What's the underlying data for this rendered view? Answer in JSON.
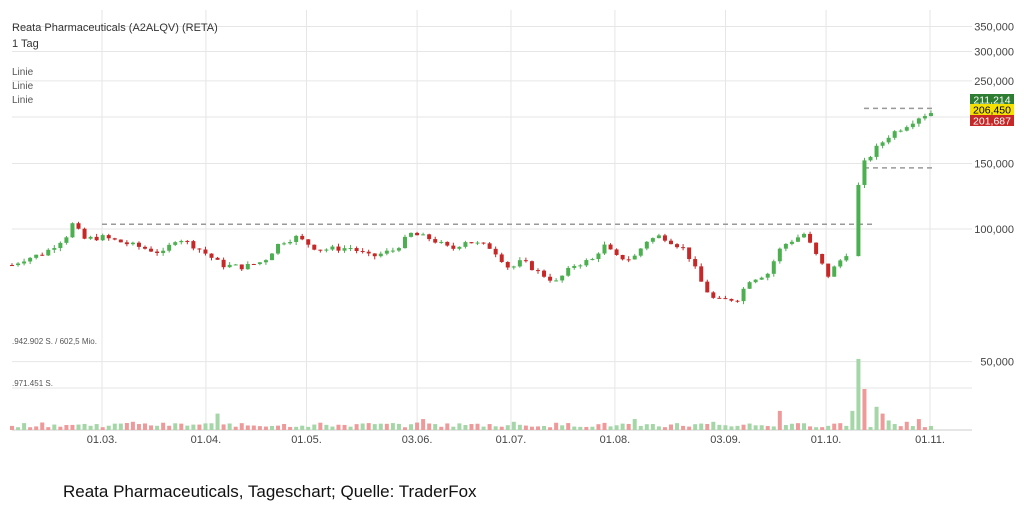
{
  "chart_data": {
    "type": "candlestick",
    "title": "Reata Pharmaceuticals (A2ALQV) (RETA)",
    "timeframe": "1 Tag",
    "indicator_labels": [
      "Linie",
      "Linie",
      "Linie"
    ],
    "x_ticks": [
      "01.03.",
      "01.04.",
      "01.05.",
      "03.06.",
      "01.07.",
      "01.08.",
      "03.09.",
      "01.10.",
      "01.11."
    ],
    "y_ticks": [
      "350,000",
      "300,000",
      "250,000",
      "150,000",
      "100,000"
    ],
    "volume_ticks": [
      "50,000"
    ],
    "volume_labels": [
      ".942.902 S. / 602,5 Mio.",
      ".971.451 S."
    ],
    "price_badges": [
      {
        "value": "211,214",
        "color": "#2e7d32",
        "text_color": "#ffffff"
      },
      {
        "value": "206,450",
        "color": "#f5e000",
        "text_color": "#000000"
      },
      {
        "value": "201,687",
        "color": "#c62828",
        "text_color": "#ffffff"
      }
    ],
    "reference_lines": [
      {
        "value": 103,
        "from": "01.03.",
        "to": "10.10."
      },
      {
        "value": 211,
        "from": "08.10.",
        "to": "01.11."
      },
      {
        "value": 146,
        "from": "08.10.",
        "to": "01.11."
      }
    ],
    "series_path": [
      [
        0,
        80
      ],
      [
        6,
        83
      ],
      [
        16,
        86
      ],
      [
        23,
        92
      ],
      [
        27,
        96
      ],
      [
        30,
        103
      ],
      [
        36,
        94
      ],
      [
        45,
        95
      ],
      [
        58,
        91
      ],
      [
        75,
        86
      ],
      [
        82,
        95
      ],
      [
        92,
        89
      ],
      [
        104,
        80
      ],
      [
        115,
        79
      ],
      [
        125,
        82
      ],
      [
        133,
        92
      ],
      [
        141,
        95
      ],
      [
        152,
        88
      ],
      [
        168,
        89
      ],
      [
        178,
        84
      ],
      [
        190,
        88
      ],
      [
        198,
        97
      ],
      [
        208,
        94
      ],
      [
        218,
        88
      ],
      [
        225,
        93
      ],
      [
        238,
        89
      ],
      [
        247,
        78
      ],
      [
        253,
        82
      ],
      [
        262,
        76
      ],
      [
        270,
        72
      ],
      [
        279,
        80
      ],
      [
        289,
        83
      ],
      [
        293,
        91
      ],
      [
        300,
        84
      ],
      [
        308,
        83
      ],
      [
        315,
        93
      ],
      [
        322,
        96
      ],
      [
        334,
        88
      ],
      [
        343,
        70
      ],
      [
        349,
        64
      ],
      [
        360,
        65
      ],
      [
        366,
        73
      ],
      [
        375,
        76
      ],
      [
        382,
        90
      ],
      [
        393,
        97
      ],
      [
        399,
        85
      ],
      [
        405,
        75
      ],
      [
        414,
        86
      ],
      [
        417,
        104
      ],
      [
        422,
        148
      ],
      [
        429,
        165
      ],
      [
        436,
        180
      ],
      [
        443,
        189
      ],
      [
        450,
        200
      ],
      [
        455,
        205
      ],
      [
        458,
        207
      ]
    ],
    "ohlc_legend": [
      "#4caf50",
      "#c62828"
    ],
    "up_color": "#4caf50",
    "down_color": "#c62828",
    "volume": {
      "unit": "S.",
      "max": 60000,
      "ticks": [
        50000
      ],
      "spike_series": [
        [
          0,
          3
        ],
        [
          60,
          6
        ],
        [
          101,
          12
        ],
        [
          115,
          5
        ],
        [
          150,
          4
        ],
        [
          205,
          8
        ],
        [
          249,
          6
        ],
        [
          310,
          8
        ],
        [
          347,
          6
        ],
        [
          380,
          14
        ],
        [
          390,
          5
        ],
        [
          412,
          5
        ],
        [
          418,
          14
        ],
        [
          420,
          52
        ],
        [
          424,
          30
        ],
        [
          428,
          17
        ],
        [
          432,
          12
        ],
        [
          436,
          7
        ],
        [
          444,
          6
        ],
        [
          450,
          8
        ],
        [
          458,
          5
        ]
      ]
    }
  },
  "caption": "Reata Pharmaceuticals, Tageschart; Quelle: TraderFox"
}
